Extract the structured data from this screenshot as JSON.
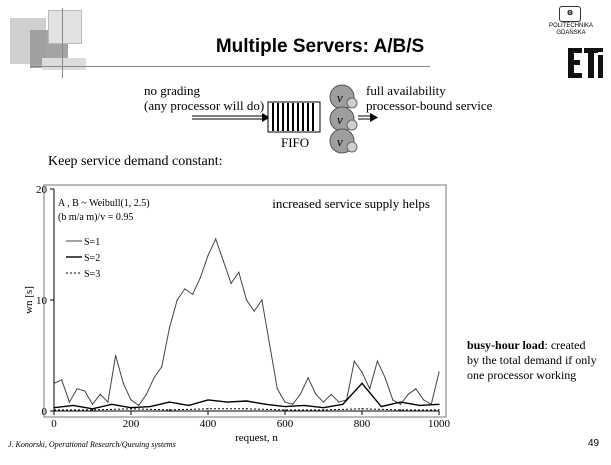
{
  "slide": {
    "title": "Multiple Servers: A/B/S",
    "logo": {
      "text": "POLITECHNIKA GDAŃSKA",
      "mark": "ETI"
    },
    "notes": {
      "no_grading_1": "no grading",
      "no_grading_2": "(any processor will do)",
      "full_availability_1": "full availability",
      "full_availability_2": "processor-bound service",
      "fifo": "FIFO",
      "server_symbol": "v",
      "keep_constant": "Keep service demand constant:"
    },
    "side_note": {
      "bold": "busy-hour load",
      "rest": ": created by the total demand if only one processor working"
    },
    "footer": "J. Konorski, Operational Research/Queuing systems",
    "page_number": "49"
  },
  "chart_data": {
    "type": "line",
    "xlabel": "request, n",
    "ylabel": "wn [s]",
    "xlim": [
      0,
      1000
    ],
    "ylim": [
      0,
      20
    ],
    "x_ticks": [
      0,
      200,
      400,
      600,
      800,
      1000
    ],
    "y_ticks": [
      0,
      10,
      20
    ],
    "annotations": [
      "A , B ~ Weibull(1, 2.5)",
      "(b m/a m)/v = 0.95",
      "increased service supply helps"
    ],
    "legend": [
      "S=1",
      "S=2",
      "S=3"
    ],
    "legend_placement": "top-left",
    "series": [
      {
        "name": "S=1",
        "x": [
          0,
          20,
          40,
          60,
          80,
          100,
          120,
          140,
          160,
          180,
          200,
          220,
          240,
          260,
          280,
          300,
          320,
          340,
          360,
          380,
          400,
          420,
          440,
          460,
          480,
          500,
          520,
          540,
          560,
          580,
          600,
          620,
          640,
          660,
          680,
          700,
          720,
          740,
          760,
          780,
          800,
          820,
          840,
          860,
          880,
          900,
          920,
          940,
          960,
          980,
          1000
        ],
        "y": [
          2.5,
          2.8,
          0.8,
          2.0,
          1.8,
          0.6,
          1.5,
          0.8,
          5.0,
          2.5,
          1.0,
          0.5,
          1.5,
          3.0,
          4.0,
          7.5,
          10.0,
          11.0,
          10.5,
          12.0,
          14.0,
          15.5,
          13.5,
          11.5,
          12.5,
          10.0,
          9.0,
          10.0,
          6.0,
          2.0,
          0.8,
          0.6,
          1.5,
          3.0,
          1.5,
          0.8,
          1.5,
          0.8,
          1.0,
          4.5,
          3.5,
          2.0,
          4.5,
          3.0,
          1.0,
          0.6,
          1.5,
          2.0,
          1.0,
          0.6,
          3.5
        ]
      },
      {
        "name": "S=2",
        "x": [
          0,
          50,
          100,
          150,
          200,
          250,
          300,
          350,
          400,
          450,
          500,
          550,
          600,
          650,
          700,
          750,
          800,
          850,
          900,
          950,
          1000
        ],
        "y": [
          0.3,
          0.5,
          0.2,
          0.6,
          0.3,
          0.4,
          0.8,
          0.5,
          1.0,
          0.8,
          0.9,
          0.6,
          0.4,
          0.5,
          0.3,
          0.6,
          2.5,
          0.4,
          0.8,
          0.5,
          0.6
        ]
      },
      {
        "name": "S=3",
        "x": [
          0,
          100,
          200,
          300,
          400,
          500,
          600,
          700,
          800,
          900,
          1000
        ],
        "y": [
          0.1,
          0.1,
          0.2,
          0.1,
          0.2,
          0.2,
          0.1,
          0.1,
          0.2,
          0.1,
          0.1
        ]
      }
    ]
  }
}
